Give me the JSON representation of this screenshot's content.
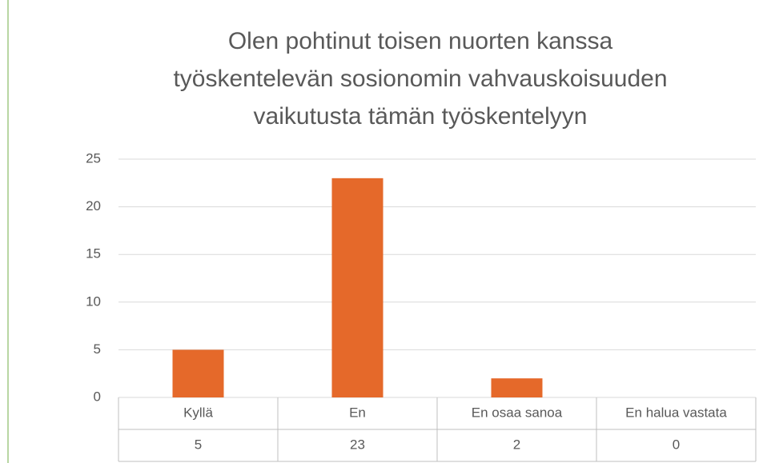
{
  "chart_data": {
    "type": "bar",
    "title": "Olen pohtinut toisen nuorten kanssa työskentelevän sosionomin vahvauskoisuuden vaikutusta tämän työskentelyyn",
    "categories": [
      "Kyllä",
      "En",
      "En osaa sanoa",
      "En halua vastata"
    ],
    "values": [
      5,
      23,
      2,
      0
    ],
    "color": "#e5692a",
    "ylim": [
      0,
      25
    ],
    "yticks": [
      0,
      5,
      10,
      15,
      20,
      25
    ],
    "grid": true
  }
}
